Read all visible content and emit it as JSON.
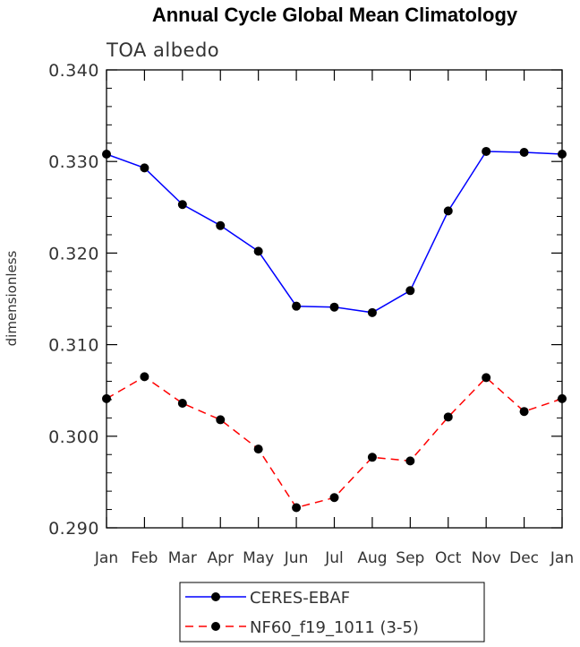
{
  "chart_data": {
    "type": "line",
    "title": "Annual Cycle Global Mean Climatology",
    "subtitle": "TOA albedo",
    "xlabel": "",
    "ylabel": "dimensionless",
    "categories": [
      "Jan",
      "Feb",
      "Mar",
      "Apr",
      "May",
      "Jun",
      "Jul",
      "Aug",
      "Sep",
      "Oct",
      "Nov",
      "Dec",
      "Jan"
    ],
    "ylim": [
      0.29,
      0.34
    ],
    "yticks": [
      "0.290",
      "0.300",
      "0.310",
      "0.320",
      "0.330",
      "0.340"
    ],
    "grid": false,
    "legend_position": "bottom",
    "series": [
      {
        "name": "CERES-EBAF",
        "color": "#0000ff",
        "dash": "solid",
        "values": [
          0.3308,
          0.3293,
          0.3253,
          0.323,
          0.3202,
          0.3142,
          0.3141,
          0.3135,
          0.3159,
          0.3246,
          0.3311,
          0.331,
          0.3308
        ]
      },
      {
        "name": "NF60_f19_1011 (3-5)",
        "color": "#ff0000",
        "dash": "dashed",
        "values": [
          0.3041,
          0.3065,
          0.3036,
          0.3018,
          0.2986,
          0.2922,
          0.2933,
          0.2977,
          0.2973,
          0.3021,
          0.3064,
          0.3027,
          0.3041
        ]
      }
    ]
  }
}
